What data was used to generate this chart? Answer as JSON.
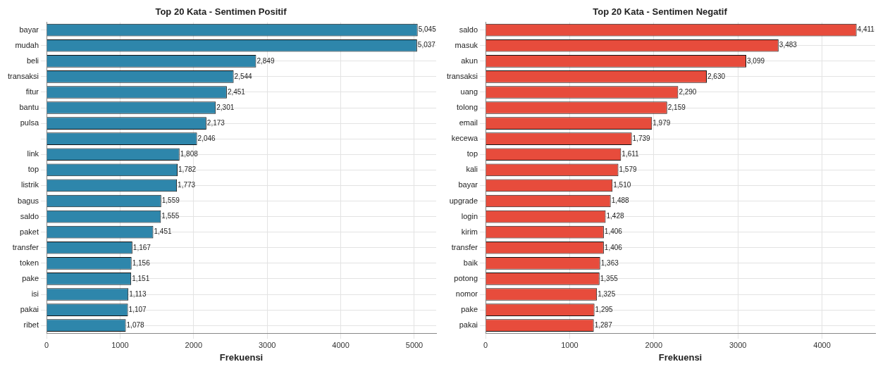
{
  "chart_data": [
    {
      "type": "bar",
      "orientation": "horizontal",
      "title": "Top 20 Kata - Sentimen Positif",
      "xlabel": "Frekuensi",
      "categories": [
        "bayar",
        "mudah",
        "beli",
        "transaksi",
        "fitur",
        "bantu",
        "pulsa",
        null,
        "link",
        "top",
        "listrik",
        "bagus",
        "saldo",
        "paket",
        "transfer",
        "token",
        "pake",
        "isi",
        "pakai",
        "ribet"
      ],
      "values": [
        5045,
        5037,
        2849,
        2544,
        2451,
        2301,
        2173,
        2046,
        1808,
        1782,
        1773,
        1559,
        1555,
        1451,
        1167,
        1156,
        1151,
        1113,
        1107,
        1078
      ],
      "value_labels": [
        "5,045",
        "5,037",
        "2,849",
        "2,544",
        "2,451",
        "2,301",
        "2,173",
        "2,046",
        "1,808",
        "1,782",
        "1,773",
        "1,559",
        "1,555",
        "1,451",
        "1,167",
        "1,156",
        "1,151",
        "1,113",
        "1,107",
        "1,078"
      ],
      "color": "#2e86ab",
      "xlim": [
        0,
        5297
      ],
      "xticks": [
        0,
        1000,
        2000,
        3000,
        4000,
        5000
      ],
      "grid": true,
      "legend": false
    },
    {
      "type": "bar",
      "orientation": "horizontal",
      "title": "Top 20 Kata - Sentimen Negatif",
      "xlabel": "Frekuensi",
      "categories": [
        "saldo",
        "masuk",
        "akun",
        "transaksi",
        "uang",
        "tolong",
        "email",
        "kecewa",
        "top",
        "kali",
        "bayar",
        "upgrade",
        "login",
        "kirim",
        "transfer",
        "baik",
        "potong",
        "nomor",
        "pake",
        "pakai"
      ],
      "values": [
        4411,
        3483,
        3099,
        2630,
        2290,
        2159,
        1979,
        1739,
        1611,
        1579,
        1510,
        1488,
        1428,
        1406,
        1406,
        1363,
        1355,
        1325,
        1295,
        1287
      ],
      "value_labels": [
        "4,411",
        "3,483",
        "3,099",
        "2,630",
        "2,290",
        "2,159",
        "1,979",
        "1,739",
        "1,611",
        "1,579",
        "1,510",
        "1,488",
        "1,428",
        "1,406",
        "1,406",
        "1,363",
        "1,355",
        "1,325",
        "1,295",
        "1,287"
      ],
      "color": "#e74c3c",
      "xlim": [
        0,
        4632
      ],
      "xticks": [
        0,
        1000,
        2000,
        3000,
        4000
      ],
      "grid": true,
      "legend": false
    }
  ]
}
